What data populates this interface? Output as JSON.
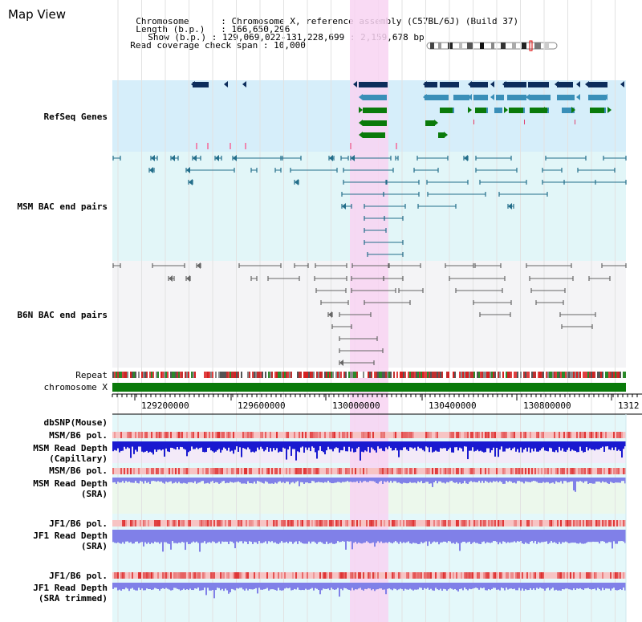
{
  "page_title": "Map View",
  "info": {
    "chromosome_label": "Chromosome",
    "chromosome_value": "Chromosome X, reference assembly (C57BL/6J) (Build 37)",
    "length_label": "Length (b.p.)",
    "length_value": "166,650,296",
    "show_label": "Show (b.p.)",
    "show_value": "129,069,022-131,228,699 : 2,159,678 bp",
    "coverage_label": "Read coverage check span",
    "coverage_value": "10,000"
  },
  "tracks": {
    "refseq": "RefSeq Genes",
    "msm_bac": "MSM BAC end pairs",
    "b6n_bac": "B6N BAC end pairs",
    "repeat": "Repeat",
    "chromosome": "chromosome X",
    "dbsnp": "dbSNP(Mouse)",
    "msm_b6_pol_1": "MSM/B6 pol.",
    "msm_read_depth_cap_1": "MSM Read Depth",
    "msm_read_depth_cap_2": "(Capillary)",
    "msm_b6_pol_2": "MSM/B6 pol.",
    "msm_read_depth_sra_1": "MSM Read Depth",
    "msm_read_depth_sra_2": "(SRA)",
    "jf1_b6_pol_1": "JF1/B6 pol.",
    "jf1_read_depth_sra_1": "JF1 Read Depth",
    "jf1_read_depth_sra_2": "(SRA)",
    "jf1_b6_pol_2": "JF1/B6 pol.",
    "jf1_read_depth_trim_1": "JF1 Read Depth",
    "jf1_read_depth_trim_2": "(SRA trimmed)"
  },
  "axis": {
    "ticks": [
      "129200000",
      "129600000",
      "130000000",
      "130400000",
      "130800000",
      "1312"
    ]
  },
  "colors": {
    "refseq_bg": "#d6eefa",
    "msm_bac_bg": "#e2f6f8",
    "b6n_bac_bg": "#f4f4f6",
    "highlight": "#f8d4f2",
    "refseq_label": "#1a1a8c",
    "msm_label": "#236e8a",
    "b6n_label": "#555555",
    "dbsnp_label": "#1a1a8c",
    "pol_msm_label": "#555555",
    "pol_orange": "#e0a018",
    "depth_blue": "#1a1ad0",
    "depth_light": "#8080e8",
    "chromosome_green": "#0a7a0a",
    "gene_dark": "#0d2d5c",
    "gene_mid": "#3a8fb8",
    "gene_green": "#0a7a0a",
    "bac_msm": "#236e8a",
    "bac_b6n": "#666666"
  }
}
